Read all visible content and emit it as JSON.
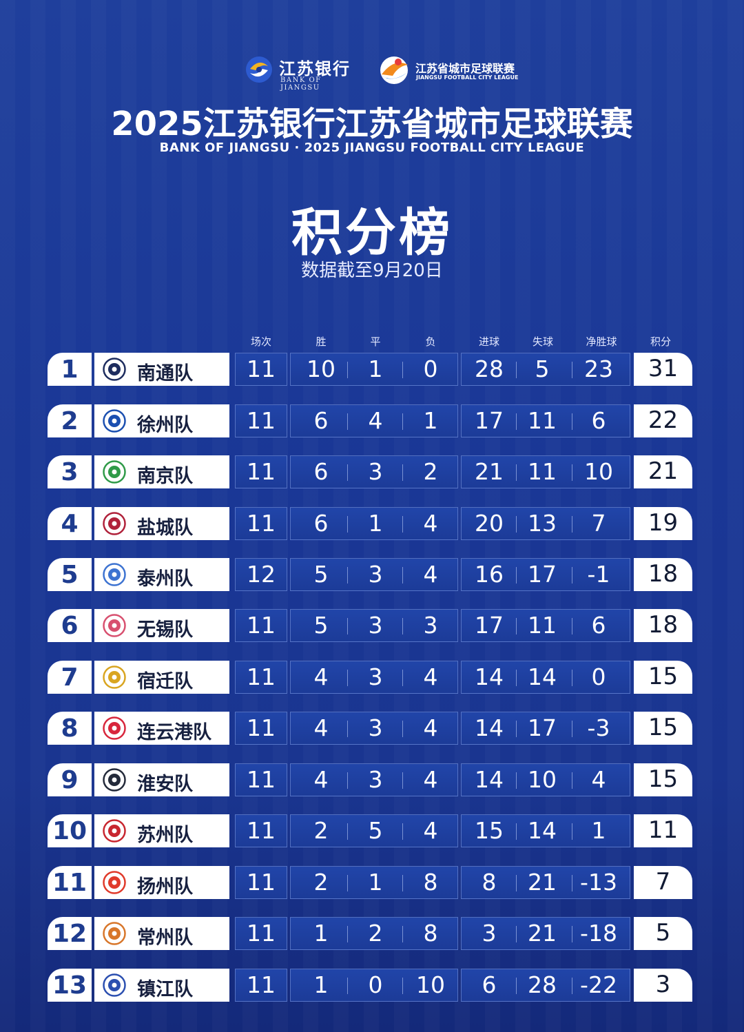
{
  "header": {
    "bank_logo_cn": "江苏银行",
    "bank_logo_en": "BANK OF JIANGSU",
    "league_logo_cn": "江苏省城市足球联赛",
    "league_logo_en": "JIANGSU FOOTBALL CITY LEAGUE",
    "title": "2025江苏银行江苏省城市足球联赛",
    "subtitle": "BANK OF JIANGSU · 2025 JIANGSU FOOTBALL CITY LEAGUE",
    "heading": "积分榜",
    "date_note": "数据截至9月20日"
  },
  "colors": {
    "background": "#1a3796",
    "rank_text": "#1e3c8f",
    "cell_white": "#ffffff"
  },
  "table": {
    "columns": {
      "played": "场次",
      "won": "胜",
      "drawn": "平",
      "lost": "负",
      "goals_for": "进球",
      "goals_against": "失球",
      "goal_diff": "净胜球",
      "points": "积分"
    },
    "rows": [
      {
        "rank": "1",
        "team": "南通队",
        "badge": "nantong-wolf-badge",
        "played": "11",
        "won": "10",
        "drawn": "1",
        "lost": "0",
        "goals_for": "28",
        "goals_against": "5",
        "goal_diff": "23",
        "points": "31"
      },
      {
        "rank": "2",
        "team": "徐州队",
        "badge": "xuzhou-xz-badge",
        "played": "11",
        "won": "6",
        "drawn": "4",
        "lost": "1",
        "goals_for": "17",
        "goals_against": "11",
        "goal_diff": "6",
        "points": "22"
      },
      {
        "rank": "3",
        "team": "南京队",
        "badge": "nanjing-green-badge",
        "played": "11",
        "won": "6",
        "drawn": "3",
        "lost": "2",
        "goals_for": "21",
        "goals_against": "11",
        "goal_diff": "10",
        "points": "21"
      },
      {
        "rank": "4",
        "team": "盐城队",
        "badge": "yancheng-shield-badge",
        "played": "11",
        "won": "6",
        "drawn": "1",
        "lost": "4",
        "goals_for": "20",
        "goals_against": "13",
        "goal_diff": "7",
        "points": "19"
      },
      {
        "rank": "5",
        "team": "泰州队",
        "badge": "taizhou-blue-badge",
        "played": "12",
        "won": "5",
        "drawn": "3",
        "lost": "4",
        "goals_for": "16",
        "goals_against": "17",
        "goal_diff": "-1",
        "points": "18"
      },
      {
        "rank": "6",
        "team": "无锡队",
        "badge": "wuxi-flower-badge",
        "played": "11",
        "won": "5",
        "drawn": "3",
        "lost": "3",
        "goals_for": "17",
        "goals_against": "11",
        "goal_diff": "6",
        "points": "18"
      },
      {
        "rank": "7",
        "team": "宿迁队",
        "badge": "suqian-gold-badge",
        "played": "11",
        "won": "4",
        "drawn": "3",
        "lost": "4",
        "goals_for": "14",
        "goals_against": "14",
        "goal_diff": "0",
        "points": "15"
      },
      {
        "rank": "8",
        "team": "连云港队",
        "badge": "lianyungang-ball-badge",
        "played": "11",
        "won": "4",
        "drawn": "3",
        "lost": "4",
        "goals_for": "14",
        "goals_against": "17",
        "goal_diff": "-3",
        "points": "15"
      },
      {
        "rank": "9",
        "team": "淮安队",
        "badge": "huaian-dragon-badge",
        "played": "11",
        "won": "4",
        "drawn": "3",
        "lost": "4",
        "goals_for": "14",
        "goals_against": "10",
        "goal_diff": "4",
        "points": "15"
      },
      {
        "rank": "10",
        "team": "苏州队",
        "badge": "suzhou-red-badge",
        "played": "11",
        "won": "2",
        "drawn": "5",
        "lost": "4",
        "goals_for": "15",
        "goals_against": "14",
        "goal_diff": "1",
        "points": "11"
      },
      {
        "rank": "11",
        "team": "扬州队",
        "badge": "yangzhou-red-square-badge",
        "played": "11",
        "won": "2",
        "drawn": "1",
        "lost": "8",
        "goals_for": "8",
        "goals_against": "21",
        "goal_diff": "-13",
        "points": "7"
      },
      {
        "rank": "12",
        "team": "常州队",
        "badge": "changzhou-orange-badge",
        "played": "11",
        "won": "1",
        "drawn": "2",
        "lost": "8",
        "goals_for": "3",
        "goals_against": "21",
        "goal_diff": "-18",
        "points": "5"
      },
      {
        "rank": "13",
        "team": "镇江队",
        "badge": "zhenjiang-blue-badge",
        "played": "11",
        "won": "1",
        "drawn": "0",
        "lost": "10",
        "goals_for": "6",
        "goals_against": "28",
        "goal_diff": "-22",
        "points": "3"
      }
    ]
  }
}
